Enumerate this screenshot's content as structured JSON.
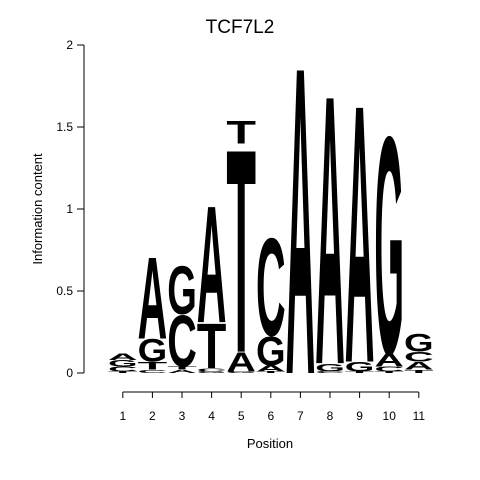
{
  "chart_data": {
    "type": "sequence-logo",
    "title": "TCF7L2",
    "xlabel": "Position",
    "ylabel": "Information content",
    "ylim": [
      0,
      2
    ],
    "y_ticks": [
      "0",
      "0.5",
      "1",
      "1.5",
      "2"
    ],
    "positions": [
      "1",
      "2",
      "3",
      "4",
      "5",
      "6",
      "7",
      "8",
      "9",
      "10",
      "11"
    ],
    "colors": {
      "A": "#00e800",
      "C": "#0000e6",
      "G": "#ffa500",
      "T": "#ff0000"
    },
    "columns": [
      [
        {
          "base": "T",
          "height": 0.01
        },
        {
          "base": "C",
          "height": 0.03
        },
        {
          "base": "G",
          "height": 0.04
        },
        {
          "base": "A",
          "height": 0.04
        }
      ],
      [
        {
          "base": "C",
          "height": 0.02
        },
        {
          "base": "T",
          "height": 0.05
        },
        {
          "base": "G",
          "height": 0.14
        },
        {
          "base": "A",
          "height": 0.51
        }
      ],
      [
        {
          "base": "A",
          "height": 0.02
        },
        {
          "base": "T",
          "height": 0.02
        },
        {
          "base": "C",
          "height": 0.32
        },
        {
          "base": "G",
          "height": 0.3
        }
      ],
      [
        {
          "base": "G",
          "height": 0.01
        },
        {
          "base": "C",
          "height": 0.02
        },
        {
          "base": "T",
          "height": 0.28
        },
        {
          "base": "A",
          "height": 0.73
        }
      ],
      [
        {
          "base": "G",
          "height": 0.01
        },
        {
          "base": "A",
          "height": 0.12
        },
        {
          "base": "T",
          "height": 1.27
        },
        {
          "base": "T",
          "height": 0.14
        }
      ],
      [
        {
          "base": "T",
          "height": 0.01
        },
        {
          "base": "A",
          "height": 0.04
        },
        {
          "base": "G",
          "height": 0.18
        },
        {
          "base": "C",
          "height": 0.61
        }
      ],
      [
        {
          "base": "A",
          "height": 1.92
        }
      ],
      [
        {
          "base": "C",
          "height": 0.01
        },
        {
          "base": "G",
          "height": 0.05
        },
        {
          "base": "A",
          "height": 1.68
        }
      ],
      [
        {
          "base": "T",
          "height": 0.01
        },
        {
          "base": "G",
          "height": 0.06
        },
        {
          "base": "A",
          "height": 1.61
        }
      ],
      [
        {
          "base": "T",
          "height": 0.01
        },
        {
          "base": "C",
          "height": 0.03
        },
        {
          "base": "A",
          "height": 0.08
        },
        {
          "base": "G",
          "height": 1.36
        }
      ],
      [
        {
          "base": "T",
          "height": 0.02
        },
        {
          "base": "A",
          "height": 0.05
        },
        {
          "base": "C",
          "height": 0.06
        },
        {
          "base": "G",
          "height": 0.11
        }
      ]
    ]
  }
}
